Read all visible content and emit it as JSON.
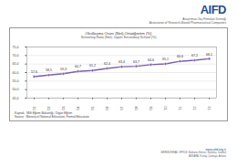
{
  "header": {
    "logo": "AIFD",
    "lines": [
      "Araştırmacı İlaç Firmaları Derneği",
      "Association of Research-Based Pharmaceutical Companies"
    ]
  },
  "chart_data": {
    "type": "line",
    "title": "Okullaşma Oranı (Net),Ortaöğretim (%)",
    "subtitle": "Schooling Ratio (Net), Upper Secondary School (%)",
    "categories": [
      "2000/'01",
      "2001/'02",
      "2002/'03",
      "2003/'04",
      "2004/'05",
      "2005/'06",
      "2006/'07",
      "2007/'08",
      "2008/'09",
      "2009/'10",
      "2010/'11",
      "2011/'12",
      "2012/'13"
    ],
    "values": [
      57.6,
      58.5,
      59.3,
      60.7,
      61.2,
      62.4,
      63.4,
      63.7,
      64.6,
      65.1,
      66.6,
      67.2,
      68.1
    ],
    "value_labels": [
      "57,6",
      "58,5",
      "59,3",
      "60,7",
      "61,2",
      "62,4",
      "63,4",
      "63,7",
      "64,6",
      "65,1",
      "66,6",
      "67,2",
      "68,1"
    ],
    "color": "#7b5ea7",
    "marker": "circle",
    "data_labels": true,
    "grid": true,
    "ylim": [
      45,
      75
    ],
    "yticks": [
      {
        "value": 45,
        "label": "45,0"
      },
      {
        "value": 50,
        "label": "50,0"
      },
      {
        "value": 55,
        "label": "55,0"
      },
      {
        "value": 60,
        "label": "60,0"
      },
      {
        "value": 65,
        "label": "65,0"
      },
      {
        "value": 70,
        "label": "70,0"
      },
      {
        "value": 75,
        "label": "75,0"
      }
    ],
    "source": [
      "Kaynak : Milli Eğitim Bakanlığı, Örgün Eğitim",
      "Source : Ministry of National Education, Formal Education"
    ]
  },
  "footer": {
    "web": "www.aifd.org.tr",
    "lines": [
      "MERKEZ/HEAD OFFICE: Barbaros Bulvarı, Beşiktaş, İstanbul",
      "ANKARA: Kızılay, Çankaya, Ankara"
    ]
  }
}
